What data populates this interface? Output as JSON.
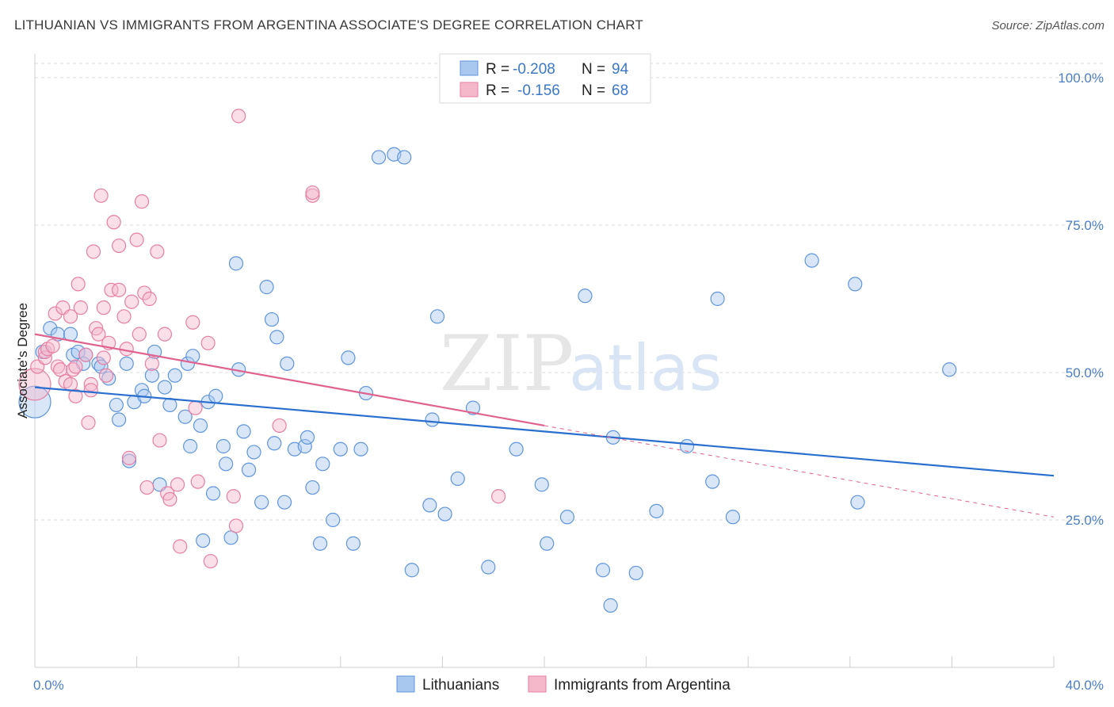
{
  "title": "LITHUANIAN VS IMMIGRANTS FROM ARGENTINA ASSOCIATE'S DEGREE CORRELATION CHART",
  "source": "Source: ZipAtlas.com",
  "watermark": {
    "part1": "ZIP",
    "part2": "atlas"
  },
  "colors": {
    "blue_fill": "#a9c8ef",
    "blue_stroke": "#5f95dc",
    "blue_line": "#2a6fcf",
    "pink_fill": "#f5b8cb",
    "pink_stroke": "#e77fa2",
    "pink_line": "#e0628f",
    "tick_text": "#4a7ec8",
    "grid": "#dddddd"
  },
  "chart_data": {
    "type": "scatter",
    "xlabel": "",
    "ylabel": "Associate's Degree",
    "xlim": [
      0,
      40
    ],
    "ylim": [
      0,
      100
    ],
    "x_tick_labels": [
      {
        "value": 0,
        "label": "0.0%"
      },
      {
        "value": 40,
        "label": "40.0%"
      }
    ],
    "y_tick_labels": [
      {
        "value": 25,
        "label": "25.0%"
      },
      {
        "value": 50,
        "label": "50.0%"
      },
      {
        "value": 75,
        "label": "75.0%"
      },
      {
        "value": 100,
        "label": "100.0%"
      }
    ],
    "legend_top": [
      {
        "series": "Lithuanians",
        "r_label": "R =",
        "r_value": "-0.208",
        "n_label": "N =",
        "n_value": "94"
      },
      {
        "series": "Immigrants from Argentina",
        "r_label": "R =",
        "r_value": "-0.156",
        "n_label": "N =",
        "n_value": "68"
      }
    ],
    "series": [
      {
        "name": "Lithuanians",
        "color": "blue",
        "trend": {
          "x0": 0,
          "y0": 47.5,
          "x1": 40,
          "y1": 32.5
        },
        "points": [
          [
            0.0,
            45.0,
            2
          ],
          [
            0.3,
            53.5,
            1
          ],
          [
            0.6,
            57.5,
            1
          ],
          [
            0.9,
            56.5,
            1
          ],
          [
            1.4,
            56.5,
            1
          ],
          [
            1.5,
            53.0,
            1
          ],
          [
            1.7,
            53.5,
            1
          ],
          [
            1.9,
            51.5,
            1
          ],
          [
            2.0,
            53.0,
            1
          ],
          [
            2.5,
            51.5,
            1
          ],
          [
            2.6,
            51.0,
            1
          ],
          [
            2.9,
            49.0,
            1
          ],
          [
            3.2,
            44.5,
            1
          ],
          [
            3.3,
            42.0,
            1
          ],
          [
            3.6,
            51.5,
            1
          ],
          [
            3.7,
            35.0,
            1
          ],
          [
            3.9,
            45.0,
            1
          ],
          [
            4.2,
            47.0,
            1
          ],
          [
            4.3,
            46.0,
            1
          ],
          [
            4.6,
            49.5,
            1
          ],
          [
            4.7,
            53.5,
            1
          ],
          [
            4.9,
            31.0,
            1
          ],
          [
            5.1,
            47.5,
            1
          ],
          [
            5.3,
            44.5,
            1
          ],
          [
            5.5,
            49.5,
            1
          ],
          [
            5.9,
            42.5,
            1
          ],
          [
            6.0,
            51.5,
            1
          ],
          [
            6.1,
            37.5,
            1
          ],
          [
            6.2,
            52.8,
            1
          ],
          [
            6.5,
            41.0,
            1
          ],
          [
            6.6,
            21.5,
            1
          ],
          [
            6.8,
            45.0,
            1
          ],
          [
            7.0,
            29.5,
            1
          ],
          [
            7.1,
            46.0,
            1
          ],
          [
            7.4,
            37.5,
            1
          ],
          [
            7.5,
            34.5,
            1
          ],
          [
            7.7,
            22.0,
            1
          ],
          [
            7.9,
            68.5,
            1
          ],
          [
            8.0,
            50.5,
            1
          ],
          [
            8.2,
            40.0,
            1
          ],
          [
            8.4,
            33.5,
            1
          ],
          [
            8.6,
            36.5,
            1
          ],
          [
            8.9,
            28.0,
            1
          ],
          [
            9.1,
            64.5,
            1
          ],
          [
            9.3,
            59.0,
            1
          ],
          [
            9.5,
            56.0,
            1
          ],
          [
            9.4,
            38.0,
            1
          ],
          [
            9.8,
            28.0,
            1
          ],
          [
            9.9,
            51.5,
            1
          ],
          [
            10.2,
            37.0,
            1
          ],
          [
            10.6,
            37.5,
            1
          ],
          [
            10.7,
            39.0,
            1
          ],
          [
            10.9,
            30.5,
            1
          ],
          [
            11.2,
            21.0,
            1
          ],
          [
            11.3,
            34.5,
            1
          ],
          [
            11.7,
            25.0,
            1
          ],
          [
            12.0,
            37.0,
            1
          ],
          [
            12.5,
            21.0,
            1
          ],
          [
            12.8,
            37.0,
            1
          ],
          [
            12.3,
            52.5,
            1
          ],
          [
            13.0,
            46.5,
            1
          ],
          [
            13.5,
            86.5,
            1
          ],
          [
            14.1,
            87.0,
            1
          ],
          [
            14.5,
            86.5,
            1
          ],
          [
            14.8,
            16.5,
            1
          ],
          [
            15.5,
            27.5,
            1
          ],
          [
            15.6,
            42.0,
            1
          ],
          [
            15.8,
            59.5,
            1
          ],
          [
            16.1,
            26.0,
            1
          ],
          [
            16.6,
            32.0,
            1
          ],
          [
            17.2,
            44.0,
            1
          ],
          [
            17.8,
            17.0,
            1
          ],
          [
            18.9,
            37.0,
            1
          ],
          [
            19.9,
            31.0,
            1
          ],
          [
            20.1,
            21.0,
            1
          ],
          [
            20.9,
            25.5,
            1
          ],
          [
            21.6,
            63.0,
            1
          ],
          [
            22.3,
            16.5,
            1
          ],
          [
            22.6,
            10.5,
            1
          ],
          [
            22.7,
            39.0,
            1
          ],
          [
            23.6,
            16.0,
            1
          ],
          [
            24.4,
            26.5,
            1
          ],
          [
            25.6,
            37.5,
            1
          ],
          [
            26.6,
            31.5,
            1
          ],
          [
            26.8,
            62.5,
            1
          ],
          [
            27.4,
            25.5,
            1
          ],
          [
            30.5,
            69.0,
            1
          ],
          [
            32.2,
            65.0,
            1
          ],
          [
            32.3,
            28.0,
            1
          ],
          [
            35.9,
            50.5,
            1
          ]
        ]
      },
      {
        "name": "Immigrants from Argentina",
        "color": "pink",
        "trend": {
          "x0": 0,
          "y0": 56.5,
          "x1": 20,
          "y1": 41.0
        },
        "trend_ext": {
          "x0": 20,
          "y0": 41.0,
          "x1": 40,
          "y1": 25.5
        },
        "points": [
          [
            0.0,
            48.0,
            2
          ],
          [
            0.1,
            51.0,
            1
          ],
          [
            0.4,
            52.5,
            1
          ],
          [
            0.4,
            53.5,
            1
          ],
          [
            0.5,
            54.0,
            1
          ],
          [
            0.7,
            54.5,
            1
          ],
          [
            0.8,
            60.0,
            1
          ],
          [
            0.9,
            51.0,
            1
          ],
          [
            1.0,
            50.5,
            1
          ],
          [
            1.1,
            61.0,
            1
          ],
          [
            1.2,
            48.5,
            1
          ],
          [
            1.4,
            48.0,
            1
          ],
          [
            1.4,
            59.5,
            1
          ],
          [
            1.5,
            50.5,
            1
          ],
          [
            1.6,
            46.0,
            1
          ],
          [
            1.6,
            51.0,
            1
          ],
          [
            1.7,
            65.0,
            1
          ],
          [
            1.8,
            61.0,
            1
          ],
          [
            2.0,
            53.0,
            1
          ],
          [
            2.1,
            41.5,
            1
          ],
          [
            2.2,
            48.0,
            1
          ],
          [
            2.2,
            47.0,
            1
          ],
          [
            2.3,
            70.5,
            1
          ],
          [
            2.4,
            57.5,
            1
          ],
          [
            2.5,
            56.5,
            1
          ],
          [
            2.6,
            80.0,
            1
          ],
          [
            2.7,
            61.0,
            1
          ],
          [
            2.7,
            52.5,
            1
          ],
          [
            2.8,
            49.5,
            1
          ],
          [
            2.9,
            55.0,
            1
          ],
          [
            3.0,
            64.0,
            1
          ],
          [
            3.1,
            75.5,
            1
          ],
          [
            3.3,
            64.0,
            1
          ],
          [
            3.3,
            71.5,
            1
          ],
          [
            3.5,
            59.5,
            1
          ],
          [
            3.6,
            54.0,
            1
          ],
          [
            3.7,
            35.5,
            1
          ],
          [
            3.8,
            62.0,
            1
          ],
          [
            4.0,
            72.5,
            1
          ],
          [
            4.1,
            56.5,
            1
          ],
          [
            4.2,
            79.0,
            1
          ],
          [
            4.3,
            63.5,
            1
          ],
          [
            4.4,
            30.5,
            1
          ],
          [
            4.5,
            62.5,
            1
          ],
          [
            4.6,
            51.5,
            1
          ],
          [
            4.8,
            70.5,
            1
          ],
          [
            4.9,
            38.5,
            1
          ],
          [
            5.1,
            56.5,
            1
          ],
          [
            5.2,
            29.5,
            1
          ],
          [
            5.3,
            28.5,
            1
          ],
          [
            5.6,
            31.0,
            1
          ],
          [
            5.7,
            20.5,
            1
          ],
          [
            6.2,
            58.5,
            1
          ],
          [
            6.3,
            44.0,
            1
          ],
          [
            6.4,
            31.5,
            1
          ],
          [
            6.8,
            55.0,
            1
          ],
          [
            6.9,
            18.0,
            1
          ],
          [
            7.8,
            29.0,
            1
          ],
          [
            7.9,
            24.0,
            1
          ],
          [
            8.0,
            93.5,
            1
          ],
          [
            9.6,
            41.0,
            1
          ],
          [
            10.9,
            80.0,
            1
          ],
          [
            10.9,
            80.5,
            1
          ],
          [
            18.2,
            29.0,
            1
          ]
        ]
      }
    ]
  },
  "bottom_legend": [
    {
      "label": "Lithuanians",
      "color": "blue"
    },
    {
      "label": "Immigrants from Argentina",
      "color": "pink"
    }
  ]
}
